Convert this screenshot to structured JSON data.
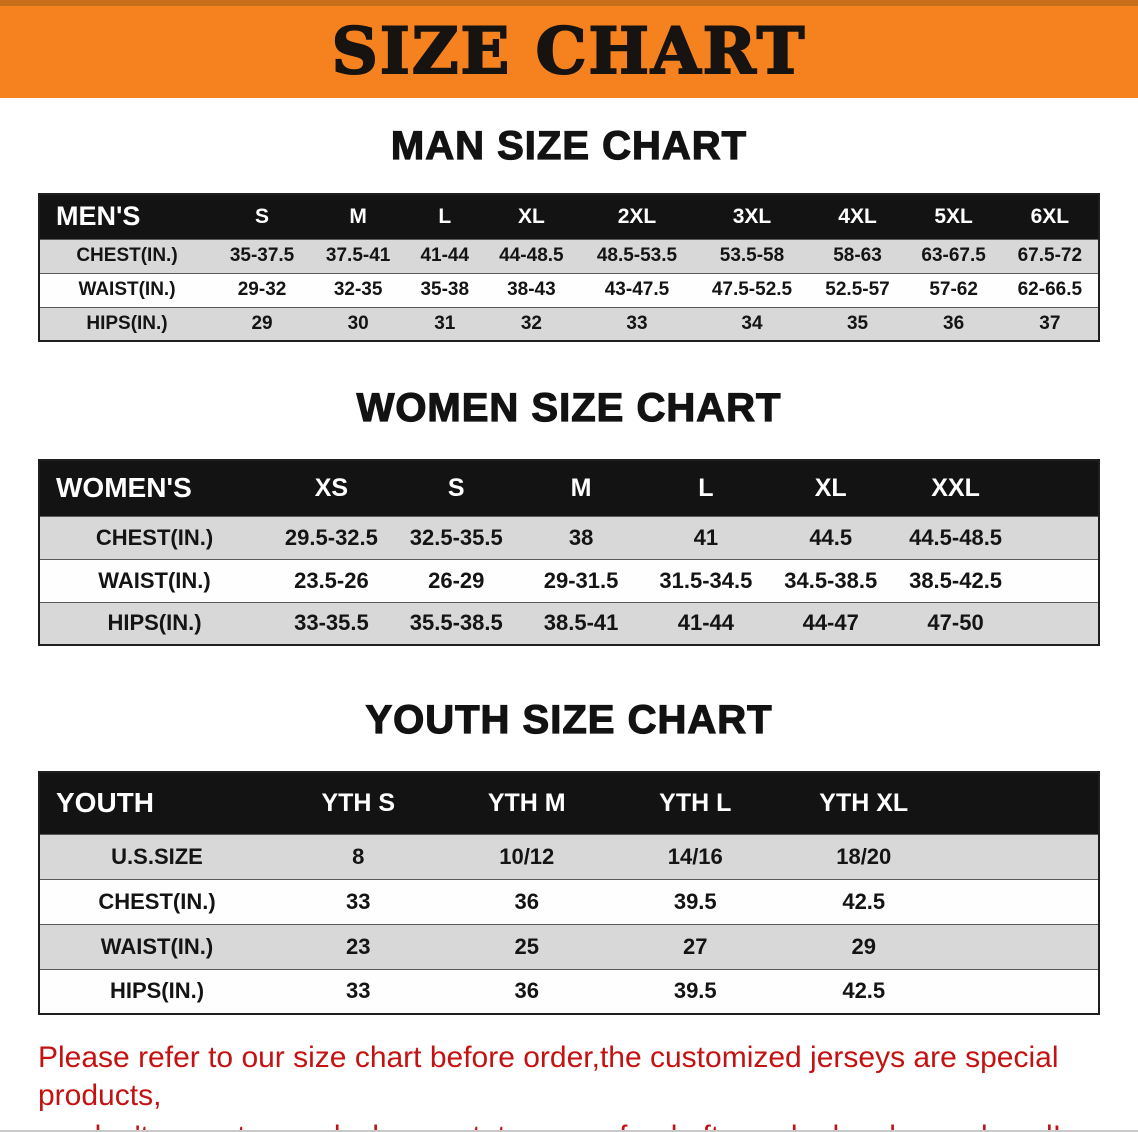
{
  "banner": {
    "title": "SIZE CHART",
    "bg_color": "#f5821f",
    "title_color": "#161311"
  },
  "sections": [
    {
      "id": "mens",
      "heading": "MAN SIZE CHART",
      "table": {
        "header": [
          "MEN'S",
          "S",
          "M",
          "L",
          "XL",
          "2XL",
          "3XL",
          "4XL",
          "5XL",
          "6XL"
        ],
        "rows": [
          [
            "CHEST(IN.)",
            "35-37.5",
            "37.5-41",
            "41-44",
            "44-48.5",
            "48.5-53.5",
            "53.5-58",
            "58-63",
            "63-67.5",
            "67.5-72"
          ],
          [
            "WAIST(IN.)",
            "29-32",
            "32-35",
            "35-38",
            "38-43",
            "43-47.5",
            "47.5-52.5",
            "52.5-57",
            "57-62",
            "62-66.5"
          ],
          [
            "HIPS(IN.)",
            "29",
            "30",
            "31",
            "32",
            "33",
            "34",
            "35",
            "36",
            "37"
          ]
        ]
      }
    },
    {
      "id": "womens",
      "heading": "WOMEN SIZE CHART",
      "table": {
        "header": [
          "WOMEN'S",
          "XS",
          "S",
          "M",
          "L",
          "XL",
          "XXL"
        ],
        "rows": [
          [
            "CHEST(IN.)",
            "29.5-32.5",
            "32.5-35.5",
            "38",
            "41",
            "44.5",
            "44.5-48.5"
          ],
          [
            "WAIST(IN.)",
            "23.5-26",
            "26-29",
            "29-31.5",
            "31.5-34.5",
            "34.5-38.5",
            "38.5-42.5"
          ],
          [
            "HIPS(IN.)",
            "33-35.5",
            "35.5-38.5",
            "38.5-41",
            "41-44",
            "44-47",
            "47-50"
          ]
        ]
      }
    },
    {
      "id": "youth",
      "heading": "YOUTH SIZE CHART",
      "table": {
        "header": [
          "YOUTH",
          "YTH S",
          "YTH M",
          "YTH L",
          "YTH XL"
        ],
        "rows": [
          [
            "U.S.SIZE",
            "8",
            "10/12",
            "14/16",
            "18/20"
          ],
          [
            "CHEST(IN.)",
            "33",
            "36",
            "39.5",
            "42.5"
          ],
          [
            "WAIST(IN.)",
            "23",
            "25",
            "27",
            "29"
          ],
          [
            "HIPS(IN.)",
            "33",
            "36",
            "39.5",
            "42.5"
          ]
        ]
      }
    }
  ],
  "disclaimer": {
    "color": "#c41212",
    "lines": [
      "Please refer to our size chart before order,the customized jerseys are special products,",
      "we don't accept cancel, change, teturn or refund after order has been placed!"
    ]
  }
}
